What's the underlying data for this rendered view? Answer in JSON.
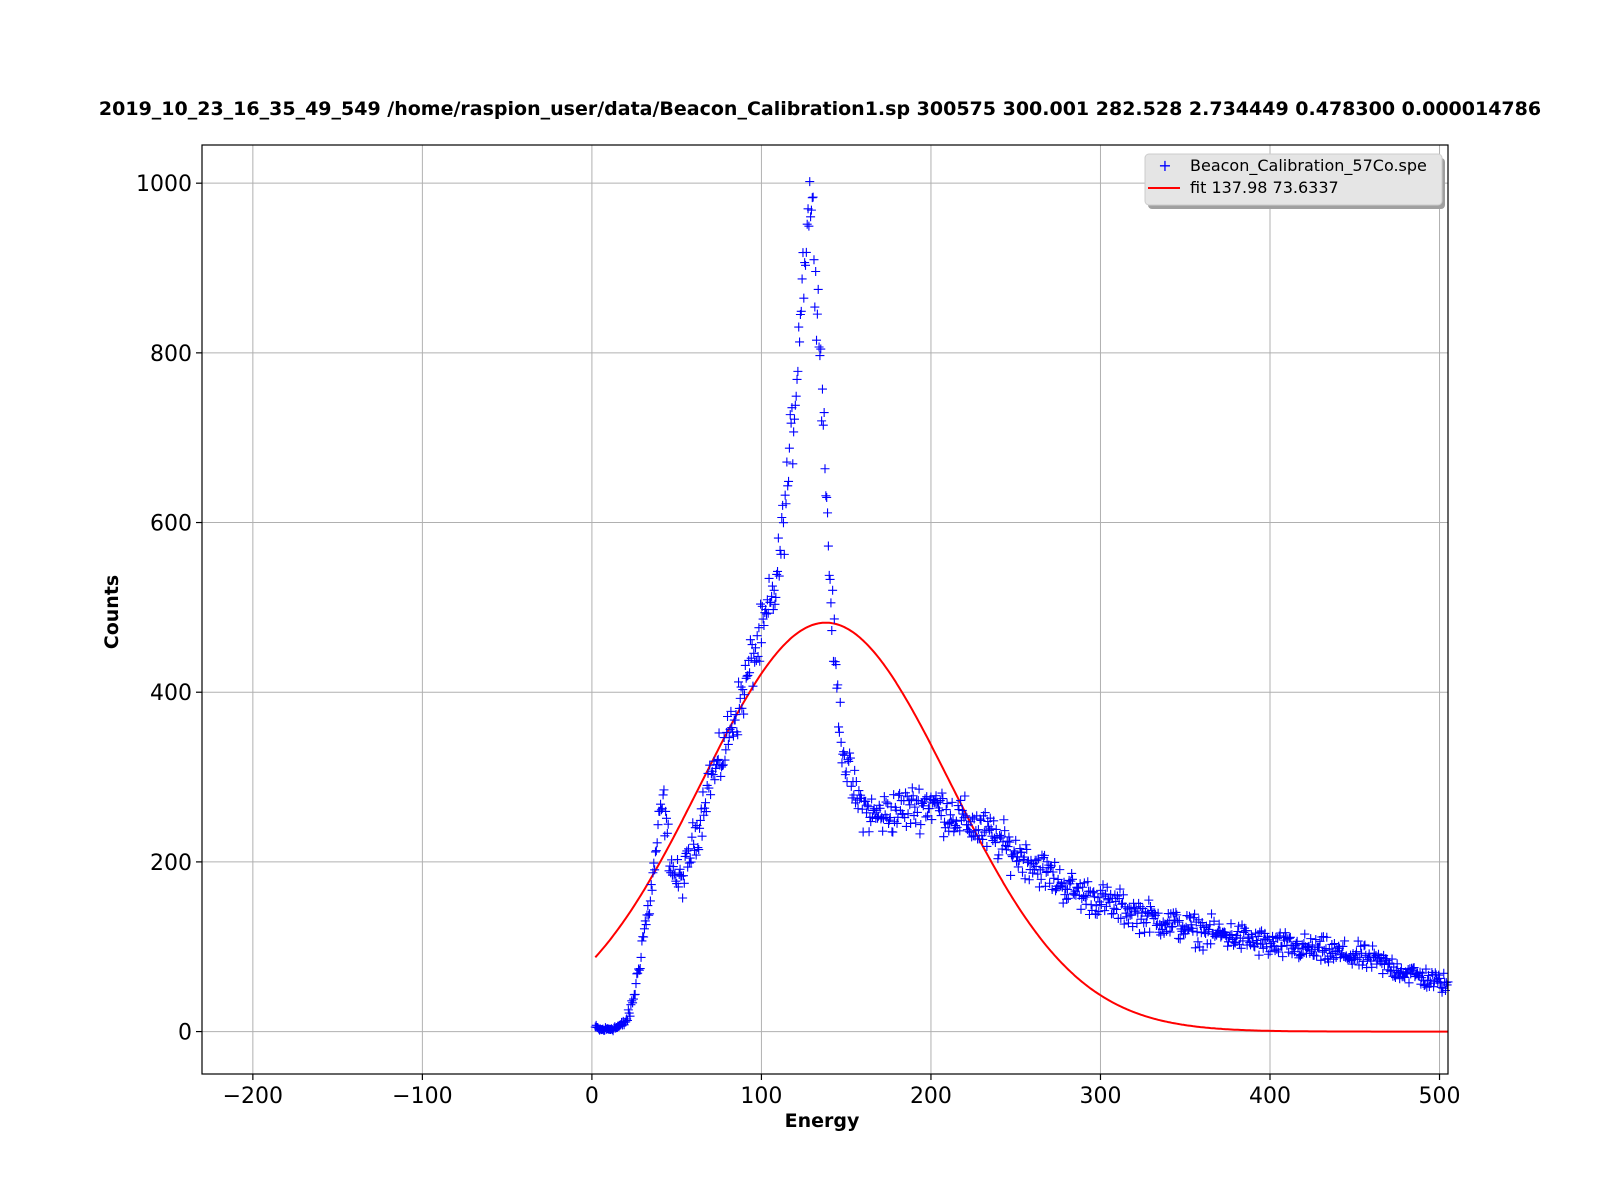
{
  "chart_data": {
    "type": "scatter",
    "title": "2019_10_23_16_35_49_549 /home/raspion_user/data/Beacon_Calibration1.sp 300575  300.001  282.528 2.734449 0.478300  0.000014786",
    "xlabel": "Energy",
    "ylabel": "Counts",
    "xlim": [
      -230,
      505
    ],
    "ylim": [
      -50,
      1045
    ],
    "xticks": [
      -200,
      -100,
      0,
      100,
      200,
      300,
      400,
      500
    ],
    "xtick_labels": [
      "−200",
      "−100",
      "0",
      "100",
      "200",
      "300",
      "400",
      "500"
    ],
    "yticks": [
      0,
      200,
      400,
      600,
      800,
      1000
    ],
    "ytick_labels": [
      "0",
      "200",
      "400",
      "600",
      "800",
      "1000"
    ],
    "grid": true,
    "legend_position": "top-right",
    "series": [
      {
        "name": "Beacon_Calibration_57Co.spe",
        "kind": "scatter",
        "marker": "+",
        "color": "#0000ff",
        "profile": {
          "x": [
            2,
            5,
            10,
            15,
            18,
            20,
            22,
            24,
            26,
            28,
            30,
            32,
            34,
            36,
            38,
            40,
            42,
            44,
            46,
            48,
            50,
            52,
            54,
            56,
            58,
            60,
            62,
            64,
            66,
            68,
            70,
            72,
            74,
            76,
            78,
            80,
            82,
            84,
            86,
            88,
            90,
            92,
            94,
            96,
            98,
            100,
            102,
            104,
            106,
            108,
            110,
            112,
            114,
            116,
            118,
            120,
            122,
            124,
            126,
            128,
            129,
            130,
            132,
            134,
            136,
            138,
            140,
            142,
            144,
            146,
            148,
            150,
            152,
            155,
            160,
            165,
            170,
            180,
            190,
            200,
            210,
            220,
            230,
            240,
            250,
            260,
            270,
            280,
            290,
            300,
            320,
            340,
            360,
            380,
            400,
            420,
            440,
            460,
            480,
            505
          ],
          "y": [
            5,
            2,
            3,
            5,
            8,
            12,
            20,
            35,
            55,
            80,
            110,
            130,
            150,
            180,
            215,
            250,
            270,
            240,
            205,
            190,
            180,
            178,
            180,
            195,
            210,
            225,
            235,
            250,
            270,
            290,
            300,
            305,
            310,
            318,
            330,
            345,
            360,
            370,
            380,
            390,
            405,
            420,
            435,
            445,
            455,
            465,
            480,
            495,
            505,
            520,
            545,
            580,
            620,
            660,
            700,
            750,
            820,
            880,
            930,
            970,
            990,
            960,
            900,
            830,
            750,
            650,
            550,
            480,
            420,
            370,
            340,
            315,
            300,
            280,
            265,
            255,
            255,
            260,
            265,
            270,
            258,
            248,
            238,
            225,
            210,
            200,
            185,
            170,
            162,
            155,
            140,
            128,
            118,
            112,
            102,
            98,
            92,
            85,
            70,
            55
          ]
        }
      },
      {
        "name": "fit 137.98 73.6337",
        "kind": "line",
        "color": "#ff0000",
        "model": "gaussian",
        "amplitude": 482,
        "mean": 137.98,
        "sigma": 73.6337,
        "x_range": [
          2,
          505
        ]
      }
    ]
  }
}
